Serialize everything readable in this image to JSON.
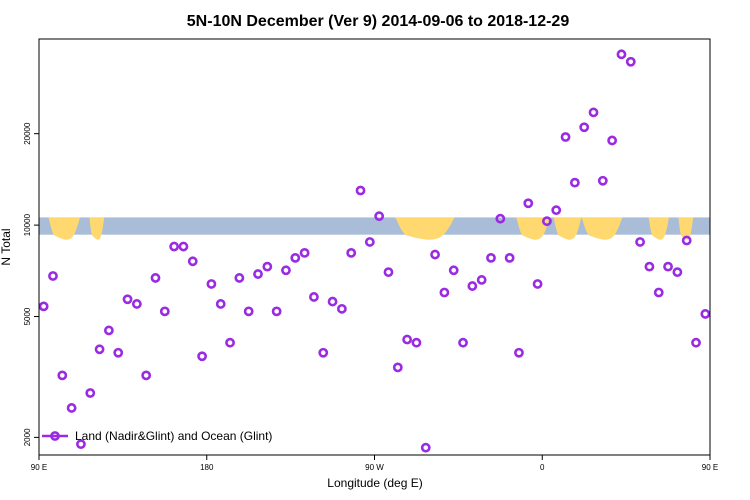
{
  "chart_data": {
    "type": "scatter",
    "title": "5N-10N December (Ver 9)   2014-09-06 to 2018-12-29",
    "xlabel": "Longitude (deg E)",
    "ylabel": "N Total",
    "y_scale": "log",
    "xlim": [
      90,
      450
    ],
    "ylim": [
      1750,
      41000
    ],
    "x_ticks": [
      {
        "value": 90,
        "label": "90 E"
      },
      {
        "value": 180,
        "label": "180"
      },
      {
        "value": 270,
        "label": "90 W"
      },
      {
        "value": 360,
        "label": "0"
      },
      {
        "value": 450,
        "label": "90 E"
      }
    ],
    "y_ticks": [
      {
        "value": 2000,
        "label": "2000"
      },
      {
        "value": 5000,
        "label": "5000"
      },
      {
        "value": 10000,
        "label": "10000"
      },
      {
        "value": 20000,
        "label": "20000"
      }
    ],
    "band_range": [
      9300,
      10600
    ],
    "band_color": "#a9bcd8",
    "land_color": "#ffd970",
    "point_color": "#9a2be2",
    "legend": {
      "label": "Land (Nadir&Glint) and Ocean (Glint)",
      "position": "bottom-left"
    },
    "series": [
      {
        "name": "Land (Nadir&Glint) and Ocean (Glint)",
        "points": [
          [
            92.5,
            5400
          ],
          [
            97.5,
            6800
          ],
          [
            102.5,
            3200
          ],
          [
            107.5,
            2500
          ],
          [
            112.5,
            1900
          ],
          [
            117.5,
            2800
          ],
          [
            122.5,
            3900
          ],
          [
            127.5,
            4500
          ],
          [
            132.5,
            3800
          ],
          [
            137.5,
            5700
          ],
          [
            142.5,
            5500
          ],
          [
            147.5,
            3200
          ],
          [
            152.5,
            6700
          ],
          [
            157.5,
            5200
          ],
          [
            162.5,
            8500
          ],
          [
            167.5,
            8500
          ],
          [
            172.5,
            7600
          ],
          [
            177.5,
            3700
          ],
          [
            182.5,
            6400
          ],
          [
            187.5,
            5500
          ],
          [
            192.5,
            4100
          ],
          [
            197.5,
            6700
          ],
          [
            202.5,
            5200
          ],
          [
            207.5,
            6900
          ],
          [
            212.5,
            7300
          ],
          [
            217.5,
            5200
          ],
          [
            222.5,
            7100
          ],
          [
            227.5,
            7800
          ],
          [
            232.5,
            8100
          ],
          [
            237.5,
            5800
          ],
          [
            242.5,
            3800
          ],
          [
            247.5,
            5600
          ],
          [
            252.5,
            5300
          ],
          [
            257.5,
            8100
          ],
          [
            262.5,
            13000
          ],
          [
            267.5,
            8800
          ],
          [
            272.5,
            10700
          ],
          [
            277.5,
            7000
          ],
          [
            282.5,
            3400
          ],
          [
            287.5,
            4200
          ],
          [
            292.5,
            4100
          ],
          [
            297.5,
            1850
          ],
          [
            302.5,
            8000
          ],
          [
            307.5,
            6000
          ],
          [
            312.5,
            7100
          ],
          [
            317.5,
            4100
          ],
          [
            322.5,
            6300
          ],
          [
            327.5,
            6600
          ],
          [
            332.5,
            7800
          ],
          [
            337.5,
            10500
          ],
          [
            342.5,
            7800
          ],
          [
            347.5,
            3800
          ],
          [
            352.5,
            11800
          ],
          [
            357.5,
            6400
          ],
          [
            362.5,
            10300
          ],
          [
            367.5,
            11200
          ],
          [
            372.5,
            19500
          ],
          [
            377.5,
            13800
          ],
          [
            382.5,
            21000
          ],
          [
            387.5,
            23500
          ],
          [
            392.5,
            14000
          ],
          [
            397.5,
            19000
          ],
          [
            402.5,
            36500
          ],
          [
            407.5,
            34500
          ],
          [
            412.5,
            8800
          ],
          [
            417.5,
            7300
          ],
          [
            422.5,
            6000
          ],
          [
            427.5,
            7300
          ],
          [
            432.5,
            7000
          ],
          [
            437.5,
            8900
          ],
          [
            442.5,
            4100
          ],
          [
            447.5,
            5100
          ]
        ]
      }
    ],
    "land_blobs": [
      {
        "x": [
          95,
          112
        ]
      },
      {
        "x": [
          117,
          125
        ]
      },
      {
        "x": [
          281,
          313
        ]
      },
      {
        "x": [
          346,
          364
        ]
      },
      {
        "x": [
          366,
          381
        ]
      },
      {
        "x": [
          381,
          403
        ]
      },
      {
        "x": [
          417,
          428
        ]
      },
      {
        "x": [
          433,
          441
        ]
      }
    ]
  }
}
